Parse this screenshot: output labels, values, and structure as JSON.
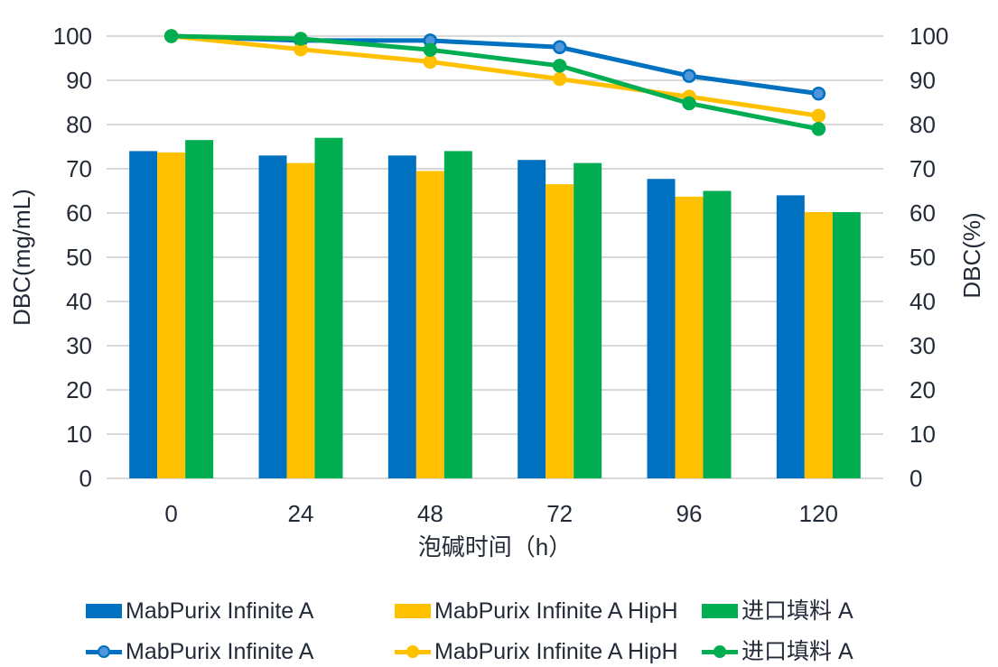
{
  "colors": {
    "blue": "#0070C0",
    "yellow": "#FFC000",
    "green": "#00AD50",
    "blue_marker_fill": "#4E95D9",
    "grid": "#D9D9D9",
    "text": "#242B38",
    "background": "#FFFFFF"
  },
  "chart_data": {
    "type": "combo-bar-line",
    "categories": [
      "0",
      "24",
      "48",
      "72",
      "96",
      "120"
    ],
    "x_axis": {
      "title": "泡碱时间（h）"
    },
    "left_axis": {
      "title": "DBC(mg/mL)",
      "min": 0,
      "max": 100,
      "step": 10,
      "ticks": [
        "0",
        "10",
        "20",
        "30",
        "40",
        "50",
        "60",
        "70",
        "80",
        "90",
        "100"
      ]
    },
    "right_axis": {
      "title": "DBC(%)",
      "min": 0,
      "max": 100,
      "step": 10,
      "ticks": [
        "0",
        "10",
        "20",
        "30",
        "40",
        "50",
        "60",
        "70",
        "80",
        "90",
        "100"
      ]
    },
    "grid": true,
    "legend_position": "bottom",
    "bar_series": [
      {
        "name": "MabPurix Infinite A",
        "color_key": "blue",
        "axis": "left",
        "values": [
          74,
          73,
          73,
          72,
          67.7,
          64
        ]
      },
      {
        "name": "MabPurix Infinite A HipH",
        "color_key": "yellow",
        "axis": "left",
        "values": [
          73.7,
          71.3,
          69.5,
          66.5,
          63.7,
          60.2
        ]
      },
      {
        "name": "进口填料 A",
        "color_key": "green",
        "axis": "left",
        "values": [
          76.5,
          77,
          74,
          71.3,
          65,
          60.2
        ]
      }
    ],
    "line_series": [
      {
        "name": "MabPurix Infinite A",
        "color_key": "blue",
        "axis": "right",
        "values": [
          100,
          99,
          99,
          97.5,
          91,
          87
        ]
      },
      {
        "name": "MabPurix Infinite A HipH",
        "color_key": "yellow",
        "axis": "right",
        "values": [
          100,
          97,
          94.2,
          90.3,
          86.3,
          82
        ]
      },
      {
        "name": "进口填料 A",
        "color_key": "green",
        "axis": "right",
        "values": [
          100,
          99.4,
          96.9,
          93.3,
          84.8,
          79
        ]
      }
    ]
  }
}
